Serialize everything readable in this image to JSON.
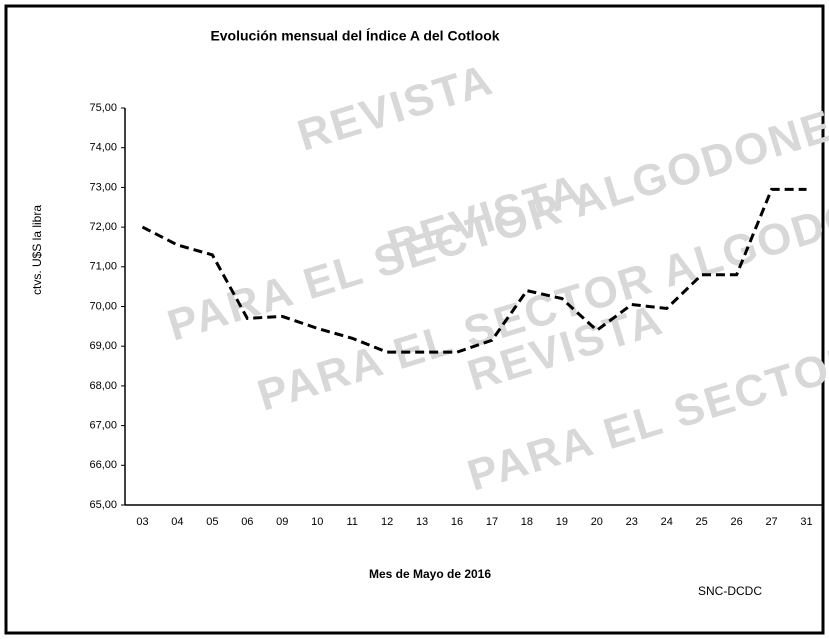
{
  "chart_data": {
    "type": "line",
    "title": "Evolución mensual del Índice A del Cotlook",
    "y_label": "ctvs. U$S la libra",
    "x_label": "Mes de Mayo de 2016",
    "source": "SNC-DCDC",
    "watermarks": [
      "REVISTA",
      "PARA EL SECTOR ALGODONERO",
      "REVISTA",
      "PARA EL SECTOR ALGODONERO",
      "REVISTA",
      "PARA EL SECTOR ALGODONERO"
    ],
    "categories": [
      "03",
      "04",
      "05",
      "06",
      "09",
      "10",
      "11",
      "12",
      "13",
      "16",
      "17",
      "18",
      "19",
      "20",
      "23",
      "24",
      "25",
      "26",
      "27",
      "31"
    ],
    "series": [
      {
        "name": "Índice A",
        "color": "#000000",
        "values": [
          72.0,
          71.55,
          71.3,
          69.7,
          69.75,
          69.45,
          69.2,
          68.85,
          68.85,
          68.85,
          69.15,
          70.4,
          70.2,
          69.4,
          70.05,
          69.95,
          70.8,
          70.8,
          72.95,
          72.95
        ]
      }
    ],
    "ylim": [
      65,
      75
    ],
    "yticks": [
      {
        "value": 65,
        "label": "65,00"
      },
      {
        "value": 66,
        "label": "66,00"
      },
      {
        "value": 67,
        "label": "67,00"
      },
      {
        "value": 68,
        "label": "68,00"
      },
      {
        "value": 69,
        "label": "69,00"
      },
      {
        "value": 70,
        "label": "70,00"
      },
      {
        "value": 71,
        "label": "71,00"
      },
      {
        "value": 72,
        "label": "72,00"
      },
      {
        "value": 73,
        "label": "73,00"
      },
      {
        "value": 74,
        "label": "74,00"
      },
      {
        "value": 75,
        "label": "75,00"
      }
    ],
    "grid": false
  }
}
